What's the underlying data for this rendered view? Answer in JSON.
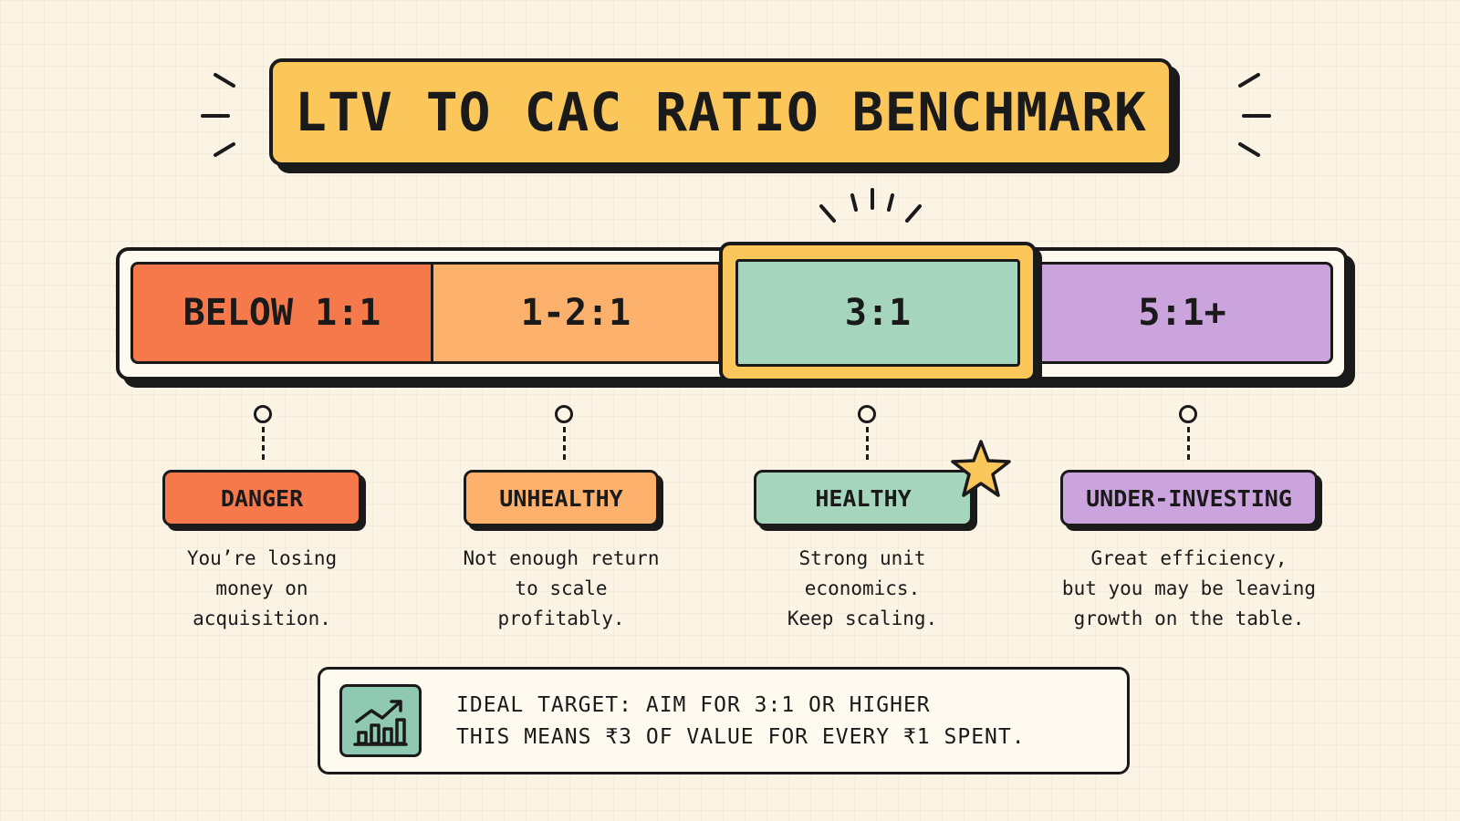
{
  "title": "LTV TO CAC RATIO BENCHMARK",
  "segments": [
    {
      "label": "BELOW 1:1",
      "color": "#f6794c"
    },
    {
      "label": "1-2:1",
      "color": "#fbb06b"
    },
    {
      "label": "3:1",
      "color": "#a6d5bd",
      "highlight": "#fbc75a"
    },
    {
      "label": "5:1+",
      "color": "#cba3dd"
    }
  ],
  "statuses": [
    {
      "label": "DANGER",
      "desc": [
        "You’re losing",
        "money on",
        "acquisition."
      ]
    },
    {
      "label": "UNHEALTHY",
      "desc": [
        "Not enough return",
        "to scale",
        "profitably."
      ]
    },
    {
      "label": "HEALTHY",
      "desc": [
        "Strong unit",
        "economics.",
        "Keep scaling."
      ],
      "icon": "star-icon"
    },
    {
      "label": "UNDER-INVESTING",
      "desc": [
        "Great efficiency,",
        "but you may be leaving",
        "growth on the table."
      ]
    }
  ],
  "footer": {
    "icon": "growth-chart-icon",
    "line1": "IDEAL TARGET: AIM FOR 3:1 OR HIGHER",
    "line2": "THIS MEANS ₹3 OF VALUE FOR EVERY ₹1 SPENT."
  }
}
